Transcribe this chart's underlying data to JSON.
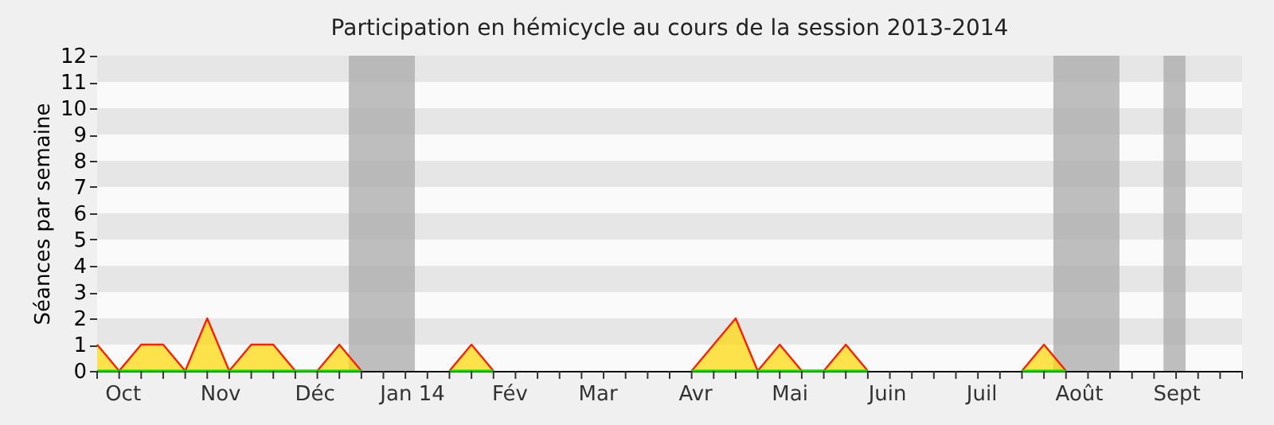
{
  "chart_data": {
    "type": "area",
    "title": "Participation en hémicycle au cours de la session 2013-2014",
    "ylabel": "Séances par semaine",
    "x": [
      "2013-09-23",
      "2013-09-30",
      "2013-10-07",
      "2013-10-14",
      "2013-10-21",
      "2013-10-28",
      "2013-11-04",
      "2013-11-11",
      "2013-11-18",
      "2013-11-25",
      "2013-12-02",
      "2013-12-09",
      "2013-12-16",
      "2013-12-23",
      "2013-12-30",
      "2014-01-06",
      "2014-01-13",
      "2014-01-20",
      "2014-01-27",
      "2014-02-03",
      "2014-02-10",
      "2014-02-17",
      "2014-02-24",
      "2014-03-03",
      "2014-03-10",
      "2014-03-17",
      "2014-03-24",
      "2014-03-31",
      "2014-04-07",
      "2014-04-14",
      "2014-04-21",
      "2014-04-28",
      "2014-05-05",
      "2014-05-12",
      "2014-05-19",
      "2014-05-26",
      "2014-06-02",
      "2014-06-09",
      "2014-06-16",
      "2014-06-23",
      "2014-06-30",
      "2014-07-07",
      "2014-07-14",
      "2014-07-21",
      "2014-07-28"
    ],
    "series": [
      {
        "color": "#ffd700",
        "values": [
          1,
          0,
          1,
          1,
          0,
          2,
          0,
          1,
          1,
          0,
          0,
          1,
          0,
          null,
          null,
          null,
          0,
          1,
          0,
          null,
          null,
          null,
          null,
          null,
          null,
          null,
          null,
          0,
          1,
          2,
          0,
          1,
          0,
          0,
          1,
          0,
          null,
          null,
          null,
          null,
          null,
          null,
          0,
          1,
          0
        ]
      },
      {
        "type": "line",
        "color": "#00e000",
        "values": [
          0,
          0,
          0,
          0,
          0,
          0,
          0,
          0,
          0,
          0,
          0,
          0,
          0,
          null,
          null,
          null,
          0,
          0,
          0,
          null,
          null,
          null,
          null,
          null,
          null,
          null,
          null,
          0,
          0,
          0,
          0,
          0,
          0,
          0,
          0,
          0,
          null,
          null,
          null,
          null,
          null,
          null,
          0,
          0,
          0
        ]
      }
    ],
    "xlim": [
      "2013-09-23",
      "2014-09-22"
    ],
    "xticks": [
      {
        "value": "2013-10-01",
        "label": "Oct"
      },
      {
        "value": "2013-11-01",
        "label": "Nov"
      },
      {
        "value": "2013-12-01",
        "label": "Déc"
      },
      {
        "value": "2014-01-01",
        "label": "Jan 14"
      },
      {
        "value": "2014-02-01",
        "label": "Fév"
      },
      {
        "value": "2014-03-01",
        "label": "Mar"
      },
      {
        "value": "2014-04-01",
        "label": "Avr"
      },
      {
        "value": "2014-05-01",
        "label": "Mai"
      },
      {
        "value": "2014-06-01",
        "label": "Juin"
      },
      {
        "value": "2014-07-01",
        "label": "Juil"
      },
      {
        "value": "2014-08-01",
        "label": "Août"
      },
      {
        "value": "2014-09-01",
        "label": "Sept"
      }
    ],
    "ylim": [
      0,
      12
    ],
    "yticks": [
      0,
      1,
      2,
      3,
      4,
      5,
      6,
      7,
      8,
      9,
      10,
      11,
      12
    ],
    "bands": [
      {
        "axis": "x",
        "from": "2013-12-12",
        "to": "2014-01-02",
        "color": "#aaaaaa"
      },
      {
        "axis": "x",
        "from": "2014-07-24",
        "to": "2014-08-14",
        "color": "#aaaaaa"
      },
      {
        "axis": "x",
        "from": "2014-08-28",
        "to": "2014-09-04",
        "color": "#aaaaaa"
      }
    ]
  }
}
